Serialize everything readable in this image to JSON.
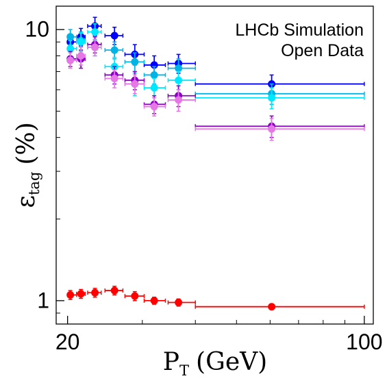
{
  "chart_data": {
    "type": "scatter",
    "title": "",
    "annotation": [
      "LHCb Simulation",
      "Open Data"
    ],
    "xlabel": "P",
    "xlabel_sub": "T",
    "xlabel_unit": "(GeV)",
    "ylabel": "ε",
    "ylabel_sub": "tag",
    "ylabel_unit": "(%)",
    "x_scale": "log",
    "y_scale": "log",
    "xlim": [
      18.8,
      105
    ],
    "ylim": [
      0.82,
      12.2
    ],
    "x_ticks": [
      {
        "value": 20,
        "label": "20"
      },
      {
        "value": 100,
        "label": "100"
      }
    ],
    "y_ticks": [
      {
        "value": 1,
        "label": "1"
      },
      {
        "value": 10,
        "label": "10"
      }
    ],
    "grid": false,
    "series": [
      {
        "color": "#0000ff",
        "x": [
          20.3,
          21.5,
          23.2,
          25.8,
          28.8,
          32.0,
          36.5,
          60.5
        ],
        "xerr": [
          [
            0.3,
            0.7
          ],
          [
            0.5,
            0.5
          ],
          [
            0.9,
            0.8
          ],
          [
            1.3,
            1.2
          ],
          [
            1.5,
            1.5
          ],
          [
            1.7,
            2.0
          ],
          [
            2.0,
            3.5
          ],
          [
            20.5,
            39.5
          ]
        ],
        "y": [
          9.0,
          9.4,
          10.3,
          9.5,
          8.1,
          7.4,
          7.5,
          6.3
        ],
        "yerr": [
          0.6,
          0.7,
          0.8,
          0.7,
          0.7,
          0.6,
          0.6,
          0.5
        ]
      },
      {
        "color": "#00b4e6",
        "x": [
          20.3,
          21.5,
          23.2,
          25.8,
          28.8,
          32.0,
          36.5,
          60.5
        ],
        "xerr": [
          [
            0.3,
            0.7
          ],
          [
            0.5,
            0.5
          ],
          [
            0.9,
            0.8
          ],
          [
            1.3,
            1.2
          ],
          [
            1.5,
            1.5
          ],
          [
            1.7,
            2.0
          ],
          [
            2.0,
            3.5
          ],
          [
            20.5,
            39.5
          ]
        ],
        "y": [
          9.4,
          9.1,
          8.6,
          8.4,
          7.6,
          6.8,
          7.2,
          5.8
        ],
        "yerr": [
          0.6,
          0.7,
          0.6,
          0.6,
          0.6,
          0.5,
          0.6,
          0.5
        ]
      },
      {
        "color": "#00e8ff",
        "x": [
          20.3,
          21.5,
          23.2,
          25.8,
          28.8,
          32.0,
          36.5,
          60.5
        ],
        "xerr": [
          [
            0.3,
            0.7
          ],
          [
            0.5,
            0.5
          ],
          [
            0.9,
            0.8
          ],
          [
            1.3,
            1.2
          ],
          [
            1.5,
            1.5
          ],
          [
            1.7,
            2.0
          ],
          [
            2.0,
            3.5
          ],
          [
            20.5,
            39.5
          ]
        ],
        "y": [
          8.5,
          9.0,
          9.8,
          7.3,
          6.3,
          6.1,
          6.5,
          5.6
        ],
        "yerr": [
          0.6,
          0.7,
          0.7,
          0.6,
          0.6,
          0.5,
          0.5,
          0.5
        ]
      },
      {
        "color": "#8c00c8",
        "x": [
          20.3,
          21.5,
          23.2,
          25.8,
          28.8,
          32.0,
          36.5,
          60.5
        ],
        "xerr": [
          [
            0.3,
            0.7
          ],
          [
            0.5,
            0.5
          ],
          [
            0.9,
            0.8
          ],
          [
            1.3,
            1.2
          ],
          [
            1.5,
            1.5
          ],
          [
            1.7,
            2.0
          ],
          [
            2.0,
            3.5
          ],
          [
            20.5,
            39.5
          ]
        ],
        "y": [
          7.8,
          7.8,
          8.8,
          6.8,
          6.5,
          5.3,
          5.7,
          4.4
        ],
        "yerr": [
          0.5,
          0.6,
          0.6,
          0.5,
          0.5,
          0.4,
          0.5,
          0.4
        ]
      },
      {
        "color": "#e678e6",
        "x": [
          20.3,
          21.5,
          23.2,
          25.8,
          28.8,
          32.0,
          36.5,
          60.5
        ],
        "xerr": [
          [
            0.3,
            0.7
          ],
          [
            0.5,
            0.5
          ],
          [
            0.9,
            0.8
          ],
          [
            1.3,
            1.2
          ],
          [
            1.5,
            1.5
          ],
          [
            1.7,
            2.0
          ],
          [
            2.0,
            3.5
          ],
          [
            20.5,
            39.5
          ]
        ],
        "y": [
          7.7,
          8.0,
          8.6,
          6.6,
          6.3,
          5.2,
          5.5,
          4.3
        ],
        "yerr": [
          0.5,
          0.6,
          0.6,
          0.5,
          0.5,
          0.4,
          0.5,
          0.4
        ]
      },
      {
        "color": "#ff0000",
        "x": [
          20.3,
          21.5,
          23.2,
          25.8,
          28.8,
          32.0,
          36.5,
          60.5
        ],
        "xerr": [
          [
            0.3,
            0.7
          ],
          [
            0.5,
            0.5
          ],
          [
            0.9,
            0.8
          ],
          [
            1.3,
            1.2
          ],
          [
            1.5,
            1.5
          ],
          [
            1.7,
            2.0
          ],
          [
            2.0,
            3.5
          ],
          [
            20.5,
            39.5
          ]
        ],
        "y": [
          1.05,
          1.06,
          1.07,
          1.09,
          1.04,
          1.0,
          0.985,
          0.95
        ],
        "yerr": [
          0.04,
          0.04,
          0.04,
          0.04,
          0.04,
          0.03,
          0.03,
          0.02
        ]
      }
    ]
  }
}
